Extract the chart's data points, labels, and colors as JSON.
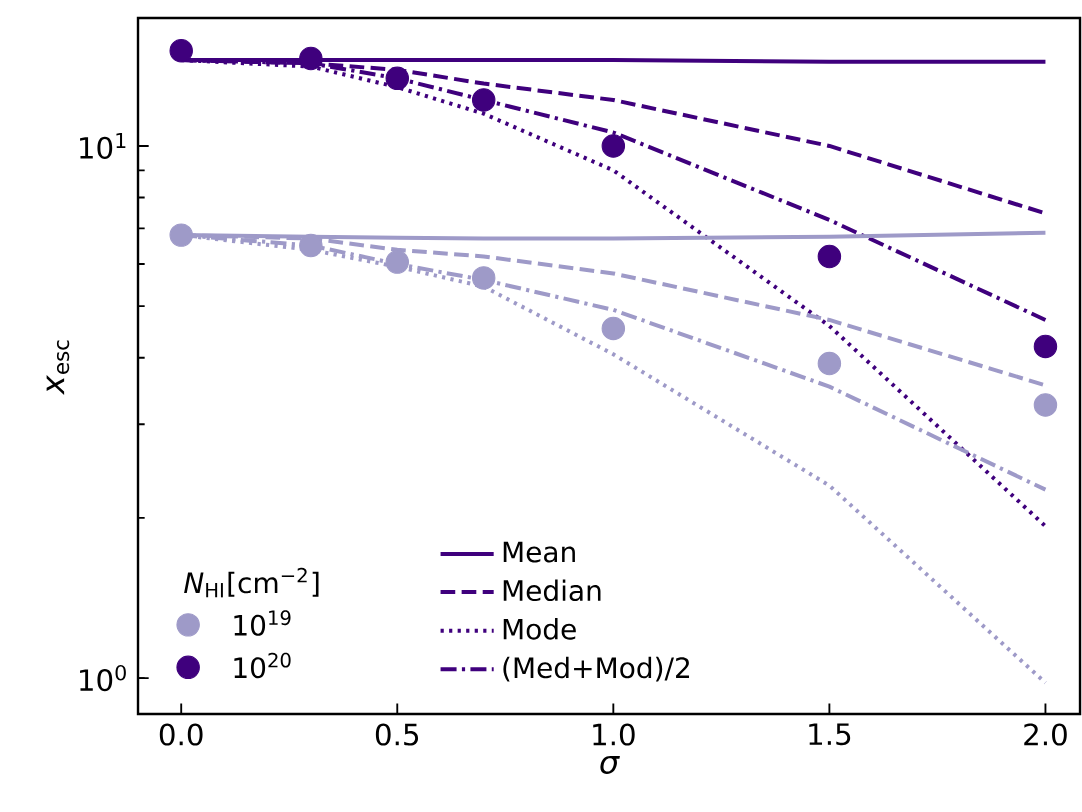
{
  "chart_data": {
    "type": "line",
    "xlabel": "σ",
    "ylabel": "*x*$_{esc}$",
    "legend_title": "*N*$_{HI}$[cm$^{−2}$]",
    "log": true,
    "legend": "bottom left",
    "xlim": [
      -0.1,
      2.08
    ],
    "ylim": [
      0.856,
      17.4
    ],
    "xticks": [
      {
        "value": 0,
        "label": "0.0"
      },
      {
        "value": 0.5,
        "label": "0.5"
      },
      {
        "value": 1,
        "label": "1.0"
      },
      {
        "value": 1.5,
        "label": "1.5"
      },
      {
        "value": 2,
        "label": "2.0"
      }
    ],
    "yticks": [
      {
        "value": 1,
        "label": "10$^{0}$"
      },
      {
        "value": 10,
        "label": "10$^{1}$"
      }
    ],
    "x": [
      0,
      0.3,
      0.5,
      0.7,
      1.0,
      1.5,
      2.0
    ],
    "series": [
      {
        "type": "scatter",
        "name": "10$^{19}$",
        "color": "#9e9ac8",
        "values": [
          6.8,
          6.5,
          6.05,
          5.65,
          4.54,
          3.9,
          3.26
        ]
      },
      {
        "type": "scatter",
        "name": "10$^{20}$",
        "color": "#3f007d",
        "values": [
          15.1,
          14.6,
          13.4,
          12.2,
          10.0,
          6.2,
          4.2
        ]
      },
      {
        "name": "Mean",
        "color": "#3f007d",
        "line_style": "solid",
        "values": [
          14.5,
          14.5,
          14.5,
          14.5,
          14.5,
          14.4,
          14.4
        ]
      },
      {
        "name": "Median",
        "color": "#3f007d",
        "line_style": "dashed",
        "values": [
          14.5,
          14.3,
          13.9,
          13.1,
          12.2,
          10.0,
          7.47
        ]
      },
      {
        "name": "Mode",
        "color": "#3f007d",
        "line_style": "dotted",
        "values": [
          14.5,
          14.1,
          12.9,
          11.5,
          9.0,
          4.59,
          1.93
        ]
      },
      {
        "name": "(Med+Mod)/2",
        "color": "#3f007d",
        "line_style": "dashdot",
        "values": [
          14.5,
          14.3,
          13.4,
          12.2,
          10.6,
          7.26,
          4.71
        ]
      },
      {
        "color": "#9e9ac8",
        "line_style": "solid",
        "values": [
          6.8,
          6.75,
          6.72,
          6.7,
          6.7,
          6.75,
          6.87
        ]
      },
      {
        "color": "#9e9ac8",
        "line_style": "dashed",
        "values": [
          6.8,
          6.7,
          6.38,
          6.2,
          5.76,
          4.71,
          3.55
        ]
      },
      {
        "color": "#9e9ac8",
        "line_style": "dotted",
        "values": [
          6.8,
          6.38,
          5.93,
          5.44,
          4.06,
          2.3,
          0.98
        ]
      },
      {
        "color": "#9e9ac8",
        "line_style": "dashdot",
        "values": [
          6.8,
          6.5,
          6.0,
          5.6,
          4.92,
          3.53,
          2.26
        ]
      }
    ]
  }
}
